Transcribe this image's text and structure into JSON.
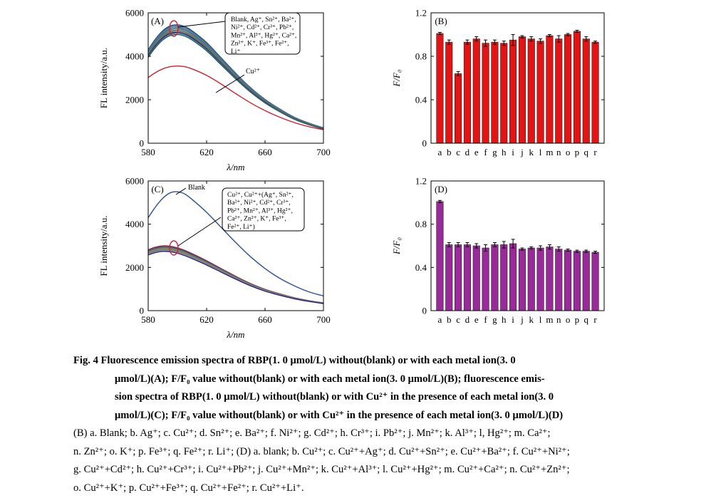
{
  "caption": {
    "lines": [
      "Fig. 4   Fluorescence emission spectra of RBP(1. 0 μmol/L) without(blank) or with each metal ion(3. 0",
      "μmol/L)(A); F/F₀ value without(blank) or with each metal ion(3. 0 μmol/L)(B); fluorescence emis-",
      "sion spectra of RBP(1. 0 μmol/L) without(blank) or with Cu²⁺ in the presence of each metal ion(3. 0",
      "μmol/L)(C); F/F₀ value without(blank) or with Cu²⁺ in the presence of each metal ion(3. 0 μmol/L)(D)"
    ],
    "legend_lines": [
      "(B) a. Blank; b. Ag⁺; c. Cu²⁺; d. Sn²⁺; e. Ba²⁺; f. Ni²⁺; g. Cd²⁺; h. Cr³⁺; i. Pb²⁺; j. Mn²⁺; k. Al³⁺; l, Hg²⁺; m. Ca²⁺;",
      "n. Zn²⁺; o. K⁺; p. Fe³⁺; q. Fe²⁺; r. Li⁺; (D) a. blank; b. Cu²⁺; c. Cu²⁺+Ag⁺; d. Cu²⁺+Sn²⁺; e. Cu²⁺+Ba²⁺; f. Cu²⁺+Ni²⁺;",
      "g. Cu²⁺+Cd²⁺; h. Cu²⁺+Cr³⁺; i. Cu²⁺+Pb²⁺; j. Cu²⁺+Mn²⁺; k. Cu²⁺+Al³⁺; l. Cu²⁺+Hg²⁺; m. Cu²⁺+Ca²⁺; n. Cu²⁺+Zn²⁺;",
      "o. Cu²⁺+K⁺; p. Cu²⁺+Fe³⁺; q. Cu²⁺+Fe²⁺; r. Cu²⁺+Li⁺."
    ]
  },
  "chart_data": [
    {
      "panel": "(A)",
      "type": "line",
      "xlabel": "λ/nm",
      "ylabel": "FL intensity/a.u.",
      "xlim": [
        580,
        700
      ],
      "ylim": [
        0,
        6000
      ],
      "xticks": [
        580,
        620,
        660,
        700
      ],
      "yticks": [
        0,
        2000,
        4000,
        6000
      ],
      "annotations": [
        "Blank, Ag⁺, Sn²⁺, Ba²⁺,",
        "Ni²⁺, Cd²⁺, Cr³⁺, Pb²⁺,",
        "Mn²⁺, Al³⁺, Hg²⁺, Ca²⁺,",
        "Zn²⁺, K⁺, Fe³⁺, Fe²⁺,",
        "Li⁺"
      ],
      "label_cu": "Cu²⁺",
      "x": [
        580,
        585,
        590,
        595,
        600,
        605,
        610,
        620,
        630,
        640,
        650,
        660,
        670,
        680,
        690,
        700
      ],
      "profile": [
        0.79,
        0.88,
        0.95,
        0.99,
        1.0,
        0.985,
        0.95,
        0.85,
        0.72,
        0.59,
        0.47,
        0.37,
        0.29,
        0.22,
        0.17,
        0.13
      ],
      "series": [
        {
          "peak": 5450,
          "color": "#1f3f8f"
        },
        {
          "peak": 5400,
          "color": "#2a6fb0"
        },
        {
          "peak": 5350,
          "color": "#4a9a48"
        },
        {
          "peak": 5300,
          "color": "#7c3f9a"
        },
        {
          "peak": 5250,
          "color": "#2a9a9a"
        },
        {
          "peak": 5200,
          "color": "#6a6a6a"
        },
        {
          "peak": 5150,
          "color": "#8a6a2a"
        },
        {
          "peak": 5100,
          "color": "#1a1a7a"
        },
        {
          "peak": 5050,
          "color": "#3a8ac0"
        },
        {
          "peak": 5000,
          "color": "#2a5a4a"
        }
      ],
      "cu_series": {
        "x": [
          580,
          585,
          590,
          595,
          600,
          605,
          610,
          620,
          630,
          640,
          650,
          660,
          670,
          680,
          690,
          700
        ],
        "values": [
          3020,
          3250,
          3420,
          3520,
          3550,
          3520,
          3420,
          3120,
          2720,
          2280,
          1860,
          1500,
          1200,
          950,
          760,
          620
        ],
        "color": "#d02030"
      }
    },
    {
      "panel": "(B)",
      "type": "bar",
      "ylabel": "F/F₀",
      "ylim": [
        0,
        1.2
      ],
      "yticks": [
        0,
        0.4,
        0.8,
        1.2
      ],
      "categories": [
        "a",
        "b",
        "c",
        "d",
        "e",
        "f",
        "g",
        "h",
        "i",
        "j",
        "k",
        "l",
        "m",
        "n",
        "o",
        "p",
        "q",
        "r"
      ],
      "values": [
        1.01,
        0.93,
        0.64,
        0.93,
        0.96,
        0.92,
        0.93,
        0.92,
        0.95,
        0.98,
        0.96,
        0.94,
        0.99,
        0.96,
        1.0,
        1.03,
        0.96,
        0.93
      ],
      "errors": [
        0.01,
        0.02,
        0.02,
        0.02,
        0.02,
        0.03,
        0.02,
        0.02,
        0.05,
        0.01,
        0.02,
        0.02,
        0.01,
        0.03,
        0.01,
        0.01,
        0.02,
        0.01
      ],
      "bar_color": "#e41414"
    },
    {
      "panel": "(C)",
      "type": "line",
      "xlabel": "λ/nm",
      "ylabel": "FL intensity/a.u.",
      "xlim": [
        580,
        700
      ],
      "ylim": [
        0,
        6000
      ],
      "xticks": [
        580,
        620,
        660,
        700
      ],
      "yticks": [
        0,
        2000,
        4000,
        6000
      ],
      "label_blank": "Blank",
      "annotations": [
        "Cu²⁺, Cu²⁺+(Ag⁺, Sn²⁺,",
        "Ba²⁺, Ni²⁺, Cd²⁺, Cr³⁺,",
        "Pb²⁺, Mn²⁺, Al³⁺, Hg²⁺,",
        "Ca²⁺, Zn²⁺, K⁺, Fe³⁺,",
        "Fe²⁺, Li⁺)"
      ],
      "blank_series": {
        "x": [
          580,
          585,
          590,
          595,
          600,
          605,
          610,
          620,
          630,
          640,
          650,
          660,
          670,
          680,
          690,
          700
        ],
        "values": [
          4300,
          4800,
          5200,
          5450,
          5500,
          5400,
          5150,
          4550,
          3850,
          3150,
          2500,
          1950,
          1500,
          1150,
          870,
          680
        ],
        "color": "#2a4f9a"
      },
      "x": [
        580,
        585,
        590,
        595,
        600,
        605,
        610,
        620,
        630,
        640,
        650,
        660,
        670,
        680,
        690,
        700
      ],
      "profile": [
        0.94,
        0.98,
        1.0,
        0.995,
        0.97,
        0.93,
        0.88,
        0.77,
        0.65,
        0.53,
        0.42,
        0.33,
        0.26,
        0.2,
        0.155,
        0.12
      ],
      "series": [
        {
          "peak": 3000,
          "color": "#d02030"
        },
        {
          "peak": 2960,
          "color": "#1f3f8f"
        },
        {
          "peak": 2920,
          "color": "#4a9a48"
        },
        {
          "peak": 2890,
          "color": "#7c3f9a"
        },
        {
          "peak": 2860,
          "color": "#c0a020"
        },
        {
          "peak": 2830,
          "color": "#2a9a9a"
        },
        {
          "peak": 2800,
          "color": "#6a6a6a"
        },
        {
          "peak": 2770,
          "color": "#e0a0b0"
        },
        {
          "peak": 2740,
          "color": "#1a1a7a"
        }
      ]
    },
    {
      "panel": "(D)",
      "type": "bar",
      "ylabel": "F/F₀",
      "ylim": [
        0,
        1.2
      ],
      "yticks": [
        0,
        0.4,
        0.8,
        1.2
      ],
      "categories": [
        "a",
        "b",
        "c",
        "d",
        "e",
        "f",
        "g",
        "h",
        "i",
        "j",
        "k",
        "l",
        "m",
        "n",
        "o",
        "p",
        "q",
        "r"
      ],
      "values": [
        1.01,
        0.61,
        0.61,
        0.61,
        0.6,
        0.58,
        0.61,
        0.61,
        0.62,
        0.57,
        0.58,
        0.58,
        0.59,
        0.57,
        0.56,
        0.55,
        0.55,
        0.54
      ],
      "errors": [
        0.01,
        0.02,
        0.02,
        0.02,
        0.02,
        0.03,
        0.02,
        0.03,
        0.04,
        0.01,
        0.01,
        0.02,
        0.02,
        0.02,
        0.01,
        0.01,
        0.01,
        0.01
      ],
      "bar_color": "#9a2a9a"
    }
  ]
}
